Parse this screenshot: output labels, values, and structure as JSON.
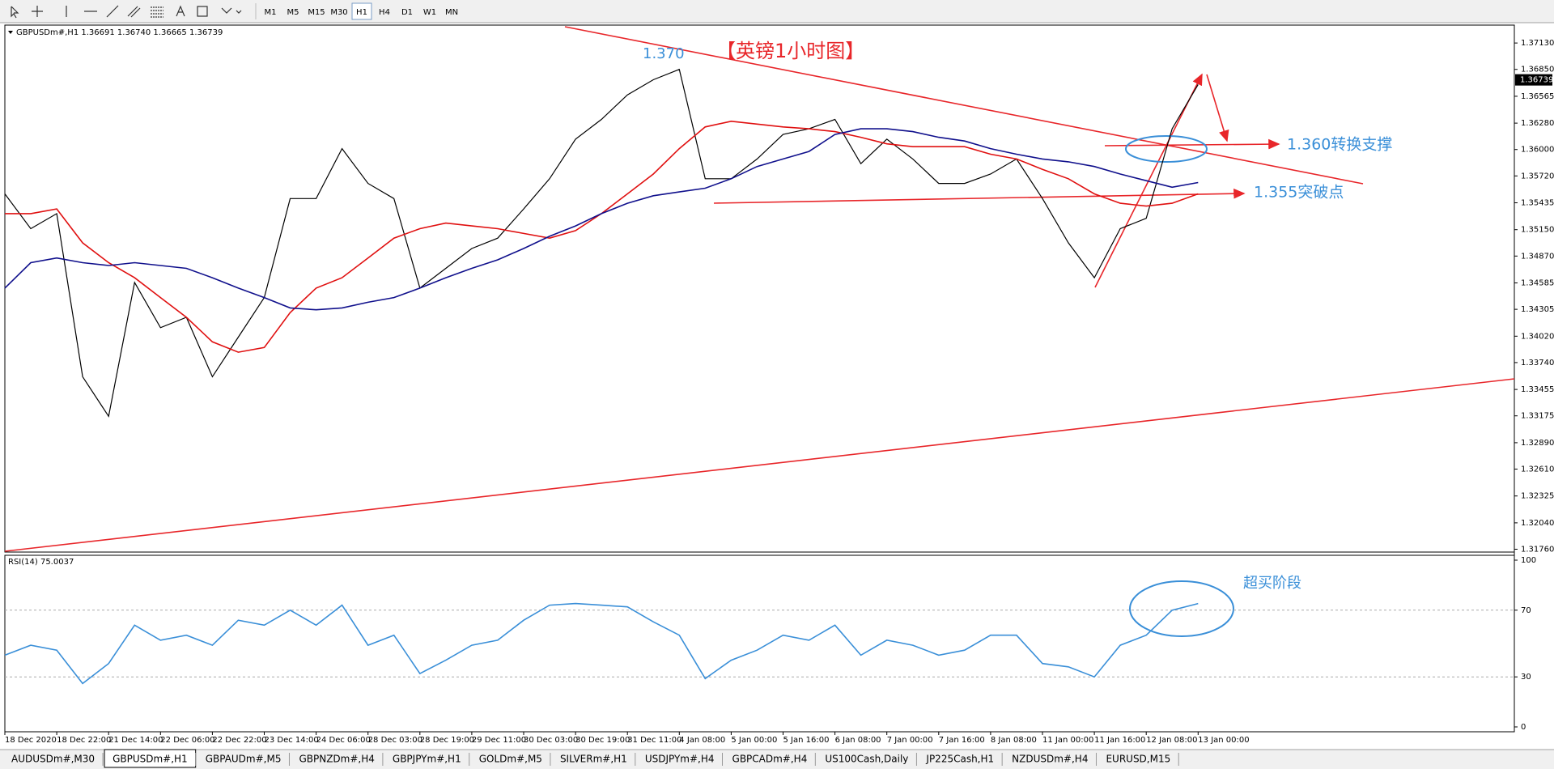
{
  "toolbar": {
    "timeframes": [
      "M1",
      "M5",
      "M15",
      "M30",
      "H1",
      "H4",
      "D1",
      "W1",
      "MN"
    ]
  },
  "chart_data": [
    {
      "type": "line",
      "title": "GBPUSDm#,H1  1.36691 1.36740 1.36665 1.36739",
      "categories": [
        "18 Dec 2020",
        null,
        "18 Dec 22:00",
        null,
        "21 Dec 14:00",
        null,
        "22 Dec 06:00",
        null,
        "22 Dec 22:00",
        null,
        "23 Dec 14:00",
        null,
        "24 Dec 06:00",
        null,
        "28 Dec 03:00",
        null,
        "28 Dec 19:00",
        null,
        "29 Dec 11:00",
        null,
        "30 Dec 03:00",
        null,
        "30 Dec 19:00",
        null,
        "31 Dec 11:00",
        null,
        "4 Jan 08:00",
        null,
        "5 Jan 00:00",
        null,
        "5 Jan 16:00",
        null,
        "6 Jan 08:00",
        null,
        "7 Jan 00:00",
        null,
        "7 Jan 16:00",
        null,
        "8 Jan 08:00",
        null,
        "11 Jan 00:00",
        null,
        "11 Jan 16:00",
        null,
        "12 Jan 08:00",
        null,
        "13 Jan 00:00"
      ],
      "series": [
        {
          "color": "#000000",
          "values": [
            1.3553,
            1.3516,
            1.3532,
            1.3359,
            1.3317,
            1.3459,
            1.3411,
            1.3422,
            1.3359,
            1.3401,
            1.3443,
            1.3548,
            1.3548,
            1.3601,
            1.3564,
            1.3548,
            1.3453,
            1.3474,
            1.3495,
            1.3506,
            1.3537,
            1.3569,
            1.3611,
            1.3632,
            1.3658,
            1.3674,
            1.3685,
            1.3569,
            1.3569,
            1.359,
            1.3616,
            1.3622,
            1.3632,
            1.3585,
            1.3611,
            1.359,
            1.3564,
            1.3564,
            1.3574,
            1.359,
            1.3548,
            1.3501,
            1.3464,
            1.3516,
            1.3527,
            1.3622,
            1.3669
          ]
        },
        {
          "color": "#e01010",
          "values": [
            1.3532,
            1.3532,
            1.3537,
            1.3501,
            1.348,
            1.3464,
            1.3443,
            1.3422,
            1.3396,
            1.3385,
            1.339,
            1.3427,
            1.3453,
            1.3464,
            1.3485,
            1.3506,
            1.3516,
            1.3522,
            1.3519,
            1.3516,
            1.3511,
            1.3506,
            1.3514,
            1.3532,
            1.3553,
            1.3574,
            1.3601,
            1.3624,
            1.363,
            1.3627,
            1.3624,
            1.3622,
            1.3619,
            1.3613,
            1.3606,
            1.3603,
            1.3603,
            1.3603,
            1.3595,
            1.359,
            1.3579,
            1.3569,
            1.3553,
            1.3543,
            1.354,
            1.3543,
            1.3553
          ]
        },
        {
          "color": "#10108c",
          "values": [
            1.3453,
            1.348,
            1.3485,
            1.348,
            1.3477,
            1.348,
            1.3477,
            1.3474,
            1.3464,
            1.3453,
            1.3443,
            1.3432,
            1.343,
            1.3432,
            1.3438,
            1.3443,
            1.3453,
            1.3464,
            1.3474,
            1.3483,
            1.3495,
            1.3508,
            1.3519,
            1.3532,
            1.3543,
            1.3551,
            1.3555,
            1.3559,
            1.3569,
            1.3582,
            1.359,
            1.3598,
            1.3616,
            1.3622,
            1.3622,
            1.3619,
            1.3613,
            1.3609,
            1.3601,
            1.3595,
            1.359,
            1.3587,
            1.3582,
            1.3574,
            1.3567,
            1.356,
            1.3565
          ]
        }
      ],
      "ylim": [
        1.3173,
        1.3732
      ],
      "yticks": [
        {
          "value": 1.3713,
          "label": "1.37130"
        },
        {
          "value": 1.3685,
          "label": "1.36850"
        },
        {
          "value": 1.36565,
          "label": "1.36565"
        },
        {
          "value": 1.3628,
          "label": "1.36280"
        },
        {
          "value": 1.36,
          "label": "1.36000"
        },
        {
          "value": 1.3572,
          "label": "1.35720"
        },
        {
          "value": 1.35435,
          "label": "1.35435"
        },
        {
          "value": 1.3515,
          "label": "1.35150"
        },
        {
          "value": 1.3487,
          "label": "1.34870"
        },
        {
          "value": 1.34585,
          "label": "1.34585"
        },
        {
          "value": 1.34305,
          "label": "1.34305"
        },
        {
          "value": 1.3402,
          "label": "1.34020"
        },
        {
          "value": 1.3374,
          "label": "1.33740"
        },
        {
          "value": 1.33455,
          "label": "1.33455"
        },
        {
          "value": 1.33175,
          "label": "1.33175"
        },
        {
          "value": 1.3289,
          "label": "1.32890"
        },
        {
          "value": 1.3261,
          "label": "1.32610"
        },
        {
          "value": 1.32325,
          "label": "1.32325"
        },
        {
          "value": 1.3204,
          "label": "1.32040"
        },
        {
          "value": 1.3176,
          "label": "1.31760"
        }
      ],
      "last_price": 1.36739,
      "annotations": [
        "1.370",
        "【英镑1小时图】",
        "1.360转换支撑",
        "1.355突破点"
      ]
    },
    {
      "type": "line",
      "title": "RSI(14) 75.0037",
      "series": [
        {
          "color": "#3a8fd8",
          "values": [
            43,
            49,
            46,
            26,
            38,
            61,
            52,
            55,
            49,
            64,
            61,
            70,
            61,
            73,
            49,
            55,
            32,
            40,
            49,
            52,
            64,
            73,
            74,
            73,
            72,
            63,
            55,
            29,
            40,
            46,
            55,
            52,
            61,
            43,
            52,
            49,
            43,
            46,
            55,
            55,
            38,
            36,
            30,
            49,
            55,
            70,
            74
          ]
        }
      ],
      "ylim": [
        0,
        100
      ],
      "yticks": [
        100,
        70,
        30,
        0
      ],
      "annotations": [
        "超买阶段"
      ]
    }
  ],
  "tabs": [
    "AUDUSDm#,M30",
    "GBPUSDm#,H1",
    "GBPAUDm#,M5",
    "GBPNZDm#,H4",
    "GBPJPYm#,H1",
    "GOLDm#,M5",
    "SILVERm#,H1",
    "USDJPYm#,H4",
    "GBPCADm#,H4",
    "US100Cash,Daily",
    "JP225Cash,H1",
    "NZDUSDm#,H4",
    "EURUSD,M15"
  ]
}
